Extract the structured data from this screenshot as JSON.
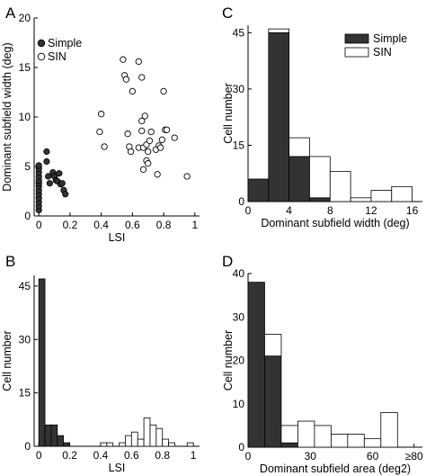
{
  "colors": {
    "simple": "#333333",
    "sin": "#ffffff",
    "axis": "#000000"
  },
  "chart_data": [
    {
      "panel": "A",
      "type": "scatter",
      "xlabel": "LSI",
      "ylabel": "Dominant subfield width (deg)",
      "xlim": [
        -0.03,
        1.03
      ],
      "ylim": [
        0,
        20
      ],
      "xticks": [
        "0",
        "0.2",
        "0.4",
        "0.6",
        "0.8",
        "1"
      ],
      "xtick_values": [
        0,
        0.2,
        0.4,
        0.6,
        0.8,
        1
      ],
      "yticks": [
        "0",
        "5",
        "10",
        "15",
        "20"
      ],
      "ytick_values": [
        0,
        5,
        10,
        15,
        20
      ],
      "legend": {
        "position": "top-left",
        "entries": [
          "Simple",
          "SIN"
        ]
      },
      "series": [
        {
          "name": "Simple",
          "points": [
            [
              0,
              0.6
            ],
            [
              0,
              1.0
            ],
            [
              0,
              1.4
            ],
            [
              0,
              1.8
            ],
            [
              0,
              2.2
            ],
            [
              0,
              2.6
            ],
            [
              0,
              3.0
            ],
            [
              0,
              3.3
            ],
            [
              0,
              3.6
            ],
            [
              0,
              4.0
            ],
            [
              0,
              4.4
            ],
            [
              0,
              4.8
            ],
            [
              0,
              5.1
            ],
            [
              0.05,
              6.5
            ],
            [
              0.05,
              5.5
            ],
            [
              0.06,
              4.0
            ],
            [
              0.07,
              3.3
            ],
            [
              0.09,
              4.4
            ],
            [
              0.1,
              4.0
            ],
            [
              0.11,
              3.6
            ],
            [
              0.12,
              3.5
            ],
            [
              0.13,
              4.3
            ],
            [
              0.14,
              3.2
            ],
            [
              0.15,
              3.3
            ],
            [
              0.16,
              2.6
            ],
            [
              0.17,
              2.2
            ]
          ]
        },
        {
          "name": "SIN",
          "points": [
            [
              0.39,
              8.5
            ],
            [
              0.4,
              10.3
            ],
            [
              0.42,
              7.0
            ],
            [
              0.54,
              15.8
            ],
            [
              0.55,
              14.2
            ],
            [
              0.56,
              13.8
            ],
            [
              0.6,
              12.6
            ],
            [
              0.64,
              15.6
            ],
            [
              0.66,
              14.0
            ],
            [
              0.57,
              8.3
            ],
            [
              0.58,
              7.0
            ],
            [
              0.59,
              6.5
            ],
            [
              0.64,
              6.9
            ],
            [
              0.66,
              8.6
            ],
            [
              0.67,
              6.9
            ],
            [
              0.66,
              9.6
            ],
            [
              0.68,
              10.1
            ],
            [
              0.67,
              4.7
            ],
            [
              0.69,
              7.2
            ],
            [
              0.69,
              5.6
            ],
            [
              0.7,
              6.5
            ],
            [
              0.7,
              5.3
            ],
            [
              0.71,
              7.6
            ],
            [
              0.72,
              8.5
            ],
            [
              0.75,
              6.7
            ],
            [
              0.76,
              4.2
            ],
            [
              0.77,
              7.1
            ],
            [
              0.78,
              6.9
            ],
            [
              0.79,
              7.7
            ],
            [
              0.8,
              12.6
            ],
            [
              0.81,
              8.7
            ],
            [
              0.82,
              8.7
            ],
            [
              0.87,
              7.9
            ],
            [
              0.95,
              4.0
            ]
          ]
        }
      ]
    },
    {
      "panel": "B",
      "type": "bar",
      "xlabel": "LSI",
      "ylabel": "Cell number",
      "xlim": [
        -0.03,
        1.04
      ],
      "ylim": [
        0,
        48
      ],
      "xticks": [
        "0",
        "0.2",
        "0.4",
        "0.6",
        "0.8",
        "1"
      ],
      "xtick_values": [
        0,
        0.2,
        0.4,
        0.6,
        0.8,
        1
      ],
      "yticks": [
        "0",
        "15",
        "30",
        "45"
      ],
      "ytick_values": [
        0,
        15,
        30,
        45
      ],
      "bin_width": 0.04,
      "series": [
        {
          "name": "Simple",
          "bins": [
            [
              0,
              47
            ],
            [
              0.04,
              6
            ],
            [
              0.08,
              6
            ],
            [
              0.12,
              3
            ],
            [
              0.16,
              1
            ]
          ]
        },
        {
          "name": "SIN",
          "bins": [
            [
              0.4,
              1
            ],
            [
              0.44,
              1
            ],
            [
              0.52,
              1
            ],
            [
              0.56,
              3
            ],
            [
              0.6,
              4
            ],
            [
              0.64,
              2
            ],
            [
              0.68,
              8
            ],
            [
              0.72,
              6
            ],
            [
              0.76,
              5
            ],
            [
              0.8,
              2
            ],
            [
              0.84,
              1
            ],
            [
              0.96,
              1
            ]
          ]
        }
      ]
    },
    {
      "panel": "C",
      "type": "bar",
      "stacked": true,
      "xlabel": "Dominant subfield width (deg)",
      "ylabel": "Cell number",
      "xlim": [
        0,
        17
      ],
      "ylim": [
        0,
        47
      ],
      "xticks": [
        "0",
        "4",
        "8",
        "12",
        "16"
      ],
      "xtick_values": [
        0,
        4,
        8,
        12,
        16
      ],
      "yticks": [
        "0",
        "15",
        "30",
        "45"
      ],
      "ytick_values": [
        0,
        15,
        30,
        45
      ],
      "bin_width": 2,
      "bin_starts": [
        0,
        2,
        4,
        6,
        8,
        10,
        12,
        14,
        16
      ],
      "legend": {
        "position": "top-right",
        "entries": [
          "Simple",
          "SIN"
        ]
      },
      "series": [
        {
          "name": "Simple",
          "values": [
            6,
            45,
            12,
            1,
            0,
            0,
            0,
            0,
            0
          ]
        },
        {
          "name": "SIN",
          "values": [
            0,
            1,
            5,
            11,
            8,
            1,
            3,
            4,
            0
          ]
        }
      ]
    },
    {
      "panel": "D",
      "type": "bar",
      "stacked": true,
      "xlabel": "Dominant subfield area (deg2)",
      "ylabel": "Cell number",
      "xlim": [
        0,
        84
      ],
      "ylim": [
        0,
        40
      ],
      "xticks": [
        "0",
        "30",
        "60",
        "≥80"
      ],
      "xtick_values": [
        0,
        30,
        60,
        80
      ],
      "yticks": [
        "0",
        "10",
        "20",
        "30",
        "40"
      ],
      "ytick_values": [
        0,
        10,
        20,
        30,
        40
      ],
      "bin_width": 8,
      "bin_starts": [
        0,
        8,
        16,
        24,
        32,
        40,
        48,
        56,
        64,
        72
      ],
      "series": [
        {
          "name": "Simple",
          "values": [
            38,
            21,
            1,
            0,
            0,
            0,
            0,
            0,
            0,
            0
          ]
        },
        {
          "name": "SIN",
          "values": [
            0,
            5,
            4,
            6,
            5,
            3,
            3,
            2,
            8,
            0
          ]
        }
      ]
    }
  ]
}
